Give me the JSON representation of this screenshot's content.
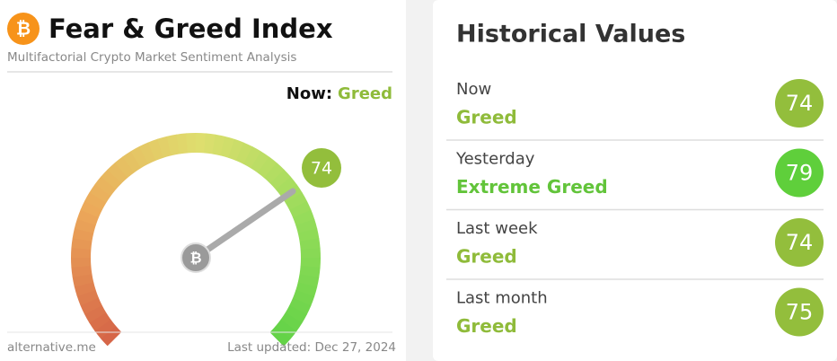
{
  "left": {
    "icon": "₿",
    "title": "Fear & Greed Index",
    "subtitle": "Multifactorial Crypto Market Sentiment Analysis",
    "now_label": "Now:",
    "now_class": "Greed",
    "now_color": "#8fbb3a",
    "gauge_value": 74,
    "gauge_color": "#93be3c",
    "source": "alternative.me",
    "last_updated": "Last updated: Dec 27, 2024"
  },
  "right": {
    "title": "Historical Values",
    "rows": [
      {
        "period": "Now",
        "classification": "Greed",
        "value": 74,
        "color": "#93be3c",
        "text_color": "#8fbb3a"
      },
      {
        "period": "Yesterday",
        "classification": "Extreme Greed",
        "value": 79,
        "color": "#5fcf3b",
        "text_color": "#62c43a"
      },
      {
        "period": "Last week",
        "classification": "Greed",
        "value": 74,
        "color": "#93be3c",
        "text_color": "#8fbb3a"
      },
      {
        "period": "Last month",
        "classification": "Greed",
        "value": 75,
        "color": "#93be3c",
        "text_color": "#8fbb3a"
      }
    ]
  }
}
